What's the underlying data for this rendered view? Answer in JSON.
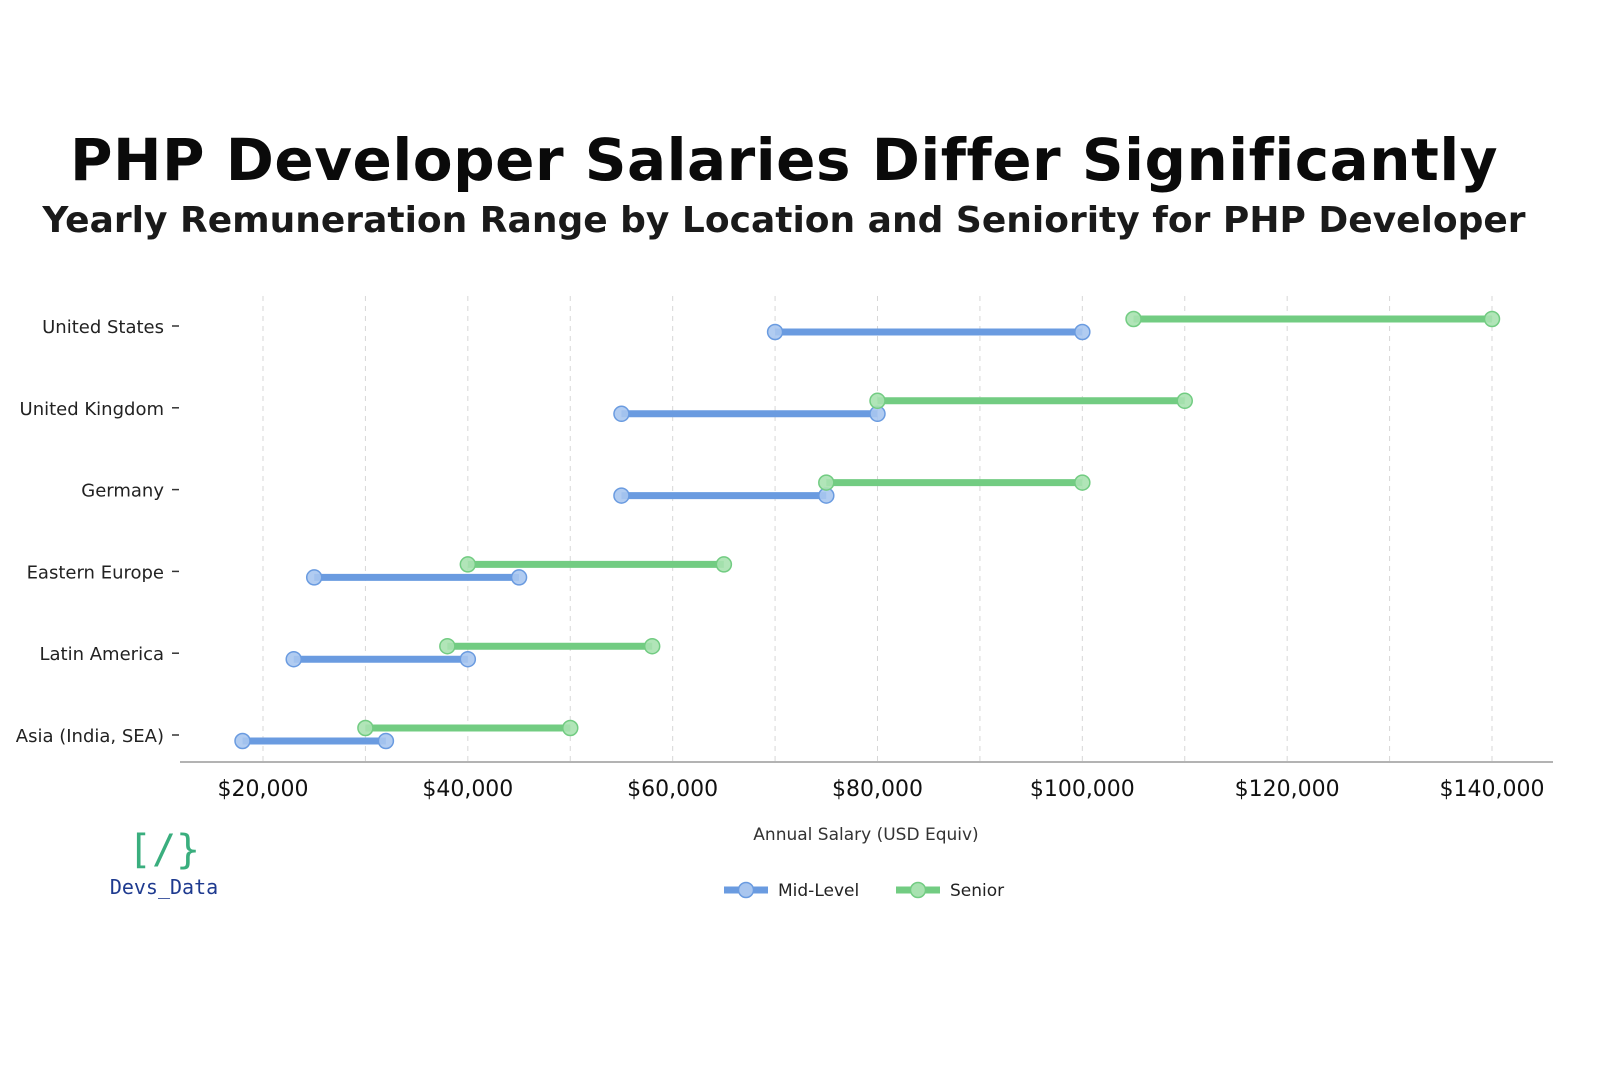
{
  "title": "PHP Developer Salaries Differ Significantly",
  "subtitle": "Yearly Remuneration Range by Location and Seniority for PHP Developer",
  "logo": {
    "mark": "[/}",
    "text": "Devs_Data"
  },
  "colors": {
    "mid": "#6a9be0",
    "mid_point": "#a9c6ef",
    "senior": "#72cc82",
    "senior_point": "#a8e2b0",
    "grid": "#d7d7d7",
    "axis": "#9a9a9a"
  },
  "chart_data": {
    "type": "dumbbell",
    "title": "PHP Developer Salaries Differ Significantly",
    "subtitle": "Yearly Remuneration Range by Location and Seniority for PHP Developer",
    "xlabel": "Annual Salary (USD Equiv)",
    "ylabel": "",
    "xlim": [
      12000,
      146000
    ],
    "xticks": [
      20000,
      40000,
      60000,
      80000,
      100000,
      120000,
      140000
    ],
    "xtick_labels": [
      "$20,000",
      "$40,000",
      "$60,000",
      "$80,000",
      "$100,000",
      "$120,000",
      "$140,000"
    ],
    "categories": [
      "United States",
      "United Kingdom",
      "Germany",
      "Eastern Europe",
      "Latin America",
      "Asia (India, SEA)"
    ],
    "series": [
      {
        "name": "Mid-Level",
        "ranges": [
          [
            70000,
            100000
          ],
          [
            55000,
            80000
          ],
          [
            55000,
            75000
          ],
          [
            25000,
            45000
          ],
          [
            23000,
            40000
          ],
          [
            18000,
            32000
          ]
        ]
      },
      {
        "name": "Senior",
        "ranges": [
          [
            105000,
            140000
          ],
          [
            80000,
            110000
          ],
          [
            75000,
            100000
          ],
          [
            40000,
            65000
          ],
          [
            38000,
            58000
          ],
          [
            30000,
            50000
          ]
        ]
      }
    ],
    "grid": "vertical-dashed",
    "legend": "bottom-center"
  }
}
